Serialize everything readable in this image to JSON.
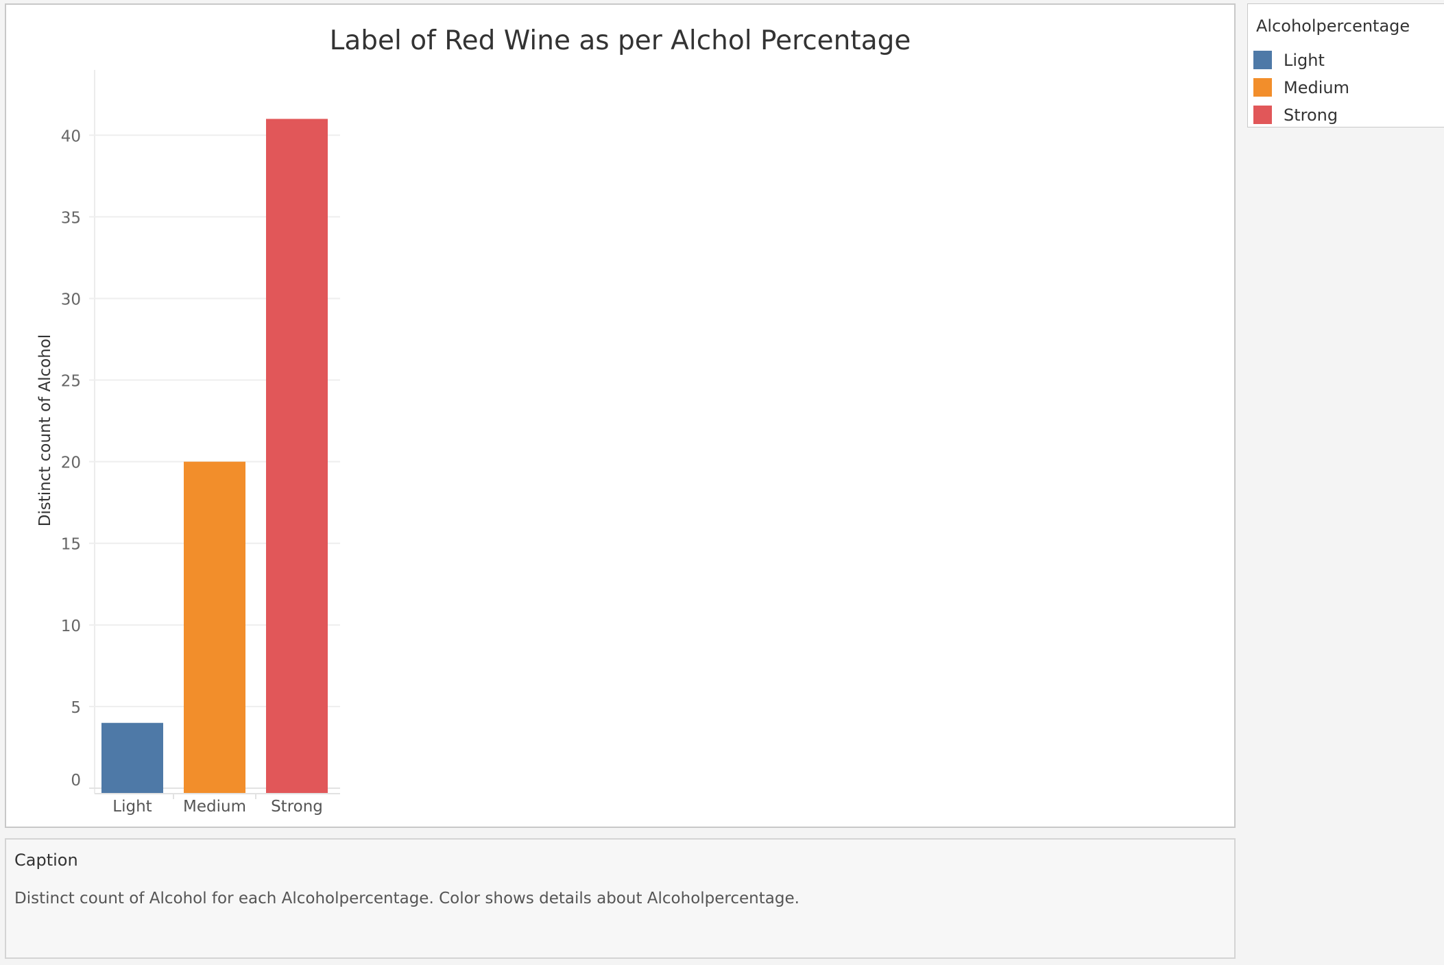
{
  "legend": {
    "title": "Alcoholpercentage",
    "items": [
      {
        "label": "Light",
        "color": "#4e79a7"
      },
      {
        "label": "Medium",
        "color": "#f28e2b"
      },
      {
        "label": "Strong",
        "color": "#e15759"
      }
    ]
  },
  "caption": {
    "title": "Caption",
    "text": "Distinct count of Alcohol for each Alcoholpercentage.  Color shows details about Alcoholpercentage."
  },
  "chart_data": {
    "type": "bar",
    "title": "Label of Red Wine as per Alchol Percentage",
    "xlabel": "",
    "ylabel": "Distinct count of Alcohol",
    "categories": [
      "Light",
      "Medium",
      "Strong"
    ],
    "values": [
      4,
      20,
      41
    ],
    "colors": [
      "#4e79a7",
      "#f28e2b",
      "#e15759"
    ],
    "ylim": [
      0,
      44
    ],
    "yticks": [
      0,
      5,
      10,
      15,
      20,
      25,
      30,
      35,
      40
    ],
    "grid": true,
    "legend_position": "top-right"
  }
}
